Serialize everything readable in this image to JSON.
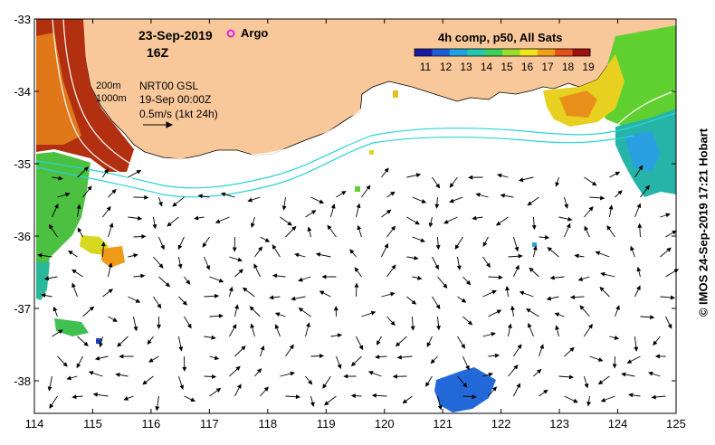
{
  "header": {
    "date": "23-Sep-2019",
    "time": "16Z",
    "argo_label": "Argo",
    "colorbar_title": "4h comp, p50, All Sats"
  },
  "legend_notes": {
    "depth_200": "200m",
    "depth_1000": "1000m",
    "model": "NRT00 GSL",
    "model_time": "19-Sep 00:00Z",
    "arrow_scale": "0.5m/s (1kt 24h)"
  },
  "colorbar": {
    "ticks": [
      "11",
      "12",
      "13",
      "14",
      "15",
      "16",
      "17",
      "18",
      "19"
    ],
    "colors": [
      "#1a1aa0",
      "#1e5fd8",
      "#1fa3e0",
      "#20c8b0",
      "#3ccf5a",
      "#9adc2a",
      "#f2e21a",
      "#f2a01a",
      "#e8501a",
      "#a01010"
    ]
  },
  "axes": {
    "x_ticks": [
      "114",
      "115",
      "116",
      "117",
      "118",
      "119",
      "120",
      "121",
      "122",
      "123",
      "124",
      "125"
    ],
    "y_ticks": [
      "-33",
      "-34",
      "-35",
      "-36",
      "-37",
      "-38"
    ]
  },
  "credit": "© IMOS 24-Sep-2019 17:21 Hobart",
  "colors": {
    "land": "#f9c89a",
    "current_line": "#2ad4d8"
  }
}
